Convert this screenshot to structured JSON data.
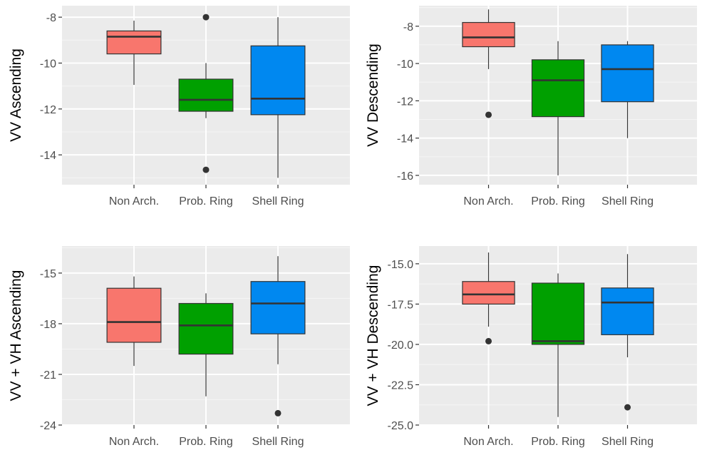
{
  "colors": {
    "panel_background": "#EBEBEB",
    "grid_major": "#FFFFFF",
    "grid_minor": "#F5F5F5",
    "box_outline": "#333333",
    "Non Arch.": "#F8766D",
    "Prob. Ring": "#00A000",
    "Shell Ring": "#0088F0"
  },
  "chart_data": [
    {
      "type": "box",
      "ylabel": "VV Ascending",
      "categories": [
        "Non Arch.",
        "Prob. Ring",
        "Shell Ring"
      ],
      "ylim": [
        -15.3,
        -7.5
      ],
      "yticks": [
        -14,
        -12,
        -10,
        -8
      ],
      "ytick_labels": [
        "-14",
        "-12",
        "-10",
        "-8"
      ],
      "boxes": [
        {
          "category": "Non Arch.",
          "whisker_low": -10.95,
          "q1": -9.6,
          "median": -8.85,
          "q3": -8.6,
          "whisker_high": -8.15,
          "outliers": []
        },
        {
          "category": "Prob. Ring",
          "whisker_low": -12.4,
          "q1": -12.1,
          "median": -11.6,
          "q3": -10.7,
          "whisker_high": -10.0,
          "outliers": [
            -14.65,
            -8.0
          ]
        },
        {
          "category": "Shell Ring",
          "whisker_low": -15.0,
          "q1": -12.25,
          "median": -11.55,
          "q3": -9.25,
          "whisker_high": -8.0,
          "outliers": []
        }
      ]
    },
    {
      "type": "box",
      "ylabel": "VV Descending",
      "categories": [
        "Non Arch.",
        "Prob. Ring",
        "Shell Ring"
      ],
      "ylim": [
        -16.5,
        -6.9
      ],
      "yticks": [
        -16,
        -14,
        -12,
        -10,
        -8
      ],
      "ytick_labels": [
        "-16",
        "-14",
        "-12",
        "-10",
        "-8"
      ],
      "boxes": [
        {
          "category": "Non Arch.",
          "whisker_low": -10.3,
          "q1": -9.1,
          "median": -8.6,
          "q3": -7.8,
          "whisker_high": -7.1,
          "outliers": [
            -12.75
          ]
        },
        {
          "category": "Prob. Ring",
          "whisker_low": -16.0,
          "q1": -12.85,
          "median": -10.9,
          "q3": -9.8,
          "whisker_high": -8.8,
          "outliers": []
        },
        {
          "category": "Shell Ring",
          "whisker_low": -14.0,
          "q1": -12.05,
          "median": -10.3,
          "q3": -9.0,
          "whisker_high": -8.8,
          "outliers": []
        }
      ]
    },
    {
      "type": "box",
      "ylabel": "VV + VH Ascending",
      "categories": [
        "Non Arch.",
        "Prob. Ring",
        "Shell Ring"
      ],
      "ylim": [
        -24.0,
        -13.4
      ],
      "yticks": [
        -24,
        -21,
        -18,
        -15
      ],
      "ytick_labels": [
        "-24",
        "-21",
        "-18",
        "-15"
      ],
      "boxes": [
        {
          "category": "Non Arch.",
          "whisker_low": -20.5,
          "q1": -19.1,
          "median": -17.9,
          "q3": -15.9,
          "whisker_high": -15.2,
          "outliers": []
        },
        {
          "category": "Prob. Ring",
          "whisker_low": -22.3,
          "q1": -19.8,
          "median": -18.1,
          "q3": -16.8,
          "whisker_high": -16.2,
          "outliers": []
        },
        {
          "category": "Shell Ring",
          "whisker_low": -20.4,
          "q1": -18.6,
          "median": -16.8,
          "q3": -15.5,
          "whisker_high": -14.0,
          "outliers": [
            -23.3
          ]
        }
      ]
    },
    {
      "type": "box",
      "ylabel": "VV + VH Descending",
      "categories": [
        "Non Arch.",
        "Prob. Ring",
        "Shell Ring"
      ],
      "ylim": [
        -25.0,
        -13.9
      ],
      "yticks": [
        -25.0,
        -22.5,
        -20.0,
        -17.5,
        -15.0
      ],
      "ytick_labels": [
        "-25.0",
        "-22.5",
        "-20.0",
        "-17.5",
        "-15.0"
      ],
      "boxes": [
        {
          "category": "Non Arch.",
          "whisker_low": -18.9,
          "q1": -17.5,
          "median": -16.9,
          "q3": -16.1,
          "whisker_high": -14.3,
          "outliers": [
            -19.8
          ]
        },
        {
          "category": "Prob. Ring",
          "whisker_low": -24.5,
          "q1": -20.0,
          "median": -19.8,
          "q3": -16.2,
          "whisker_high": -15.6,
          "outliers": []
        },
        {
          "category": "Shell Ring",
          "whisker_low": -20.8,
          "q1": -19.4,
          "median": -17.4,
          "q3": -16.5,
          "whisker_high": -14.4,
          "outliers": [
            -23.9
          ]
        }
      ]
    }
  ]
}
